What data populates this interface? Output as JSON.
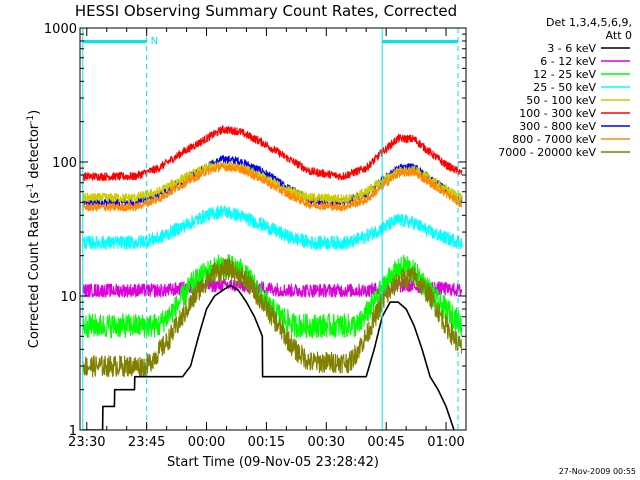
{
  "chart_data": {
    "type": "line",
    "title": "HESSI Observing Summary Count Rates, Corrected",
    "xlabel": "Start Time (09-Nov-05 23:28:42)",
    "ylabel_main": "Corrected Count Rate (s",
    "ylabel_sup1": "-1",
    "ylabel_mid": " detector",
    "ylabel_sup2": "-1",
    "ylabel_end": ")",
    "yscale": "log",
    "ylim": [
      1,
      1000
    ],
    "xlim_min": [
      -1.7,
      95
    ],
    "x_ticks": [
      {
        "min": 0,
        "label": "23:30"
      },
      {
        "min": 15,
        "label": "23:45"
      },
      {
        "min": 30,
        "label": "00:00"
      },
      {
        "min": 45,
        "label": "00:15"
      },
      {
        "min": 60,
        "label": "00:30"
      },
      {
        "min": 75,
        "label": "00:45"
      },
      {
        "min": 90,
        "label": "01:00"
      }
    ],
    "y_ticks": [
      {
        "v": 1,
        "label": "1"
      },
      {
        "v": 10,
        "label": "10"
      },
      {
        "v": 100,
        "label": "100"
      },
      {
        "v": 1000,
        "label": "1000"
      }
    ],
    "legend_header": [
      "Det 1,3,4,5,6,9,",
      "Att 0"
    ],
    "legend_position": "right",
    "series": [
      {
        "name": "3 - 6 keV",
        "color": "#000000",
        "points": [
          [
            -1,
            1
          ],
          [
            4,
            1
          ],
          [
            4,
            1.5
          ],
          [
            7,
            1.5
          ],
          [
            7,
            2
          ],
          [
            12,
            2
          ],
          [
            12,
            2.5
          ],
          [
            24,
            2.5
          ],
          [
            26,
            3
          ],
          [
            28,
            5
          ],
          [
            30,
            8
          ],
          [
            32,
            10
          ],
          [
            34,
            11
          ],
          [
            36,
            12
          ],
          [
            38,
            11
          ],
          [
            40,
            9
          ],
          [
            42,
            7
          ],
          [
            44,
            5
          ],
          [
            44,
            2.5
          ],
          [
            68,
            2.5
          ],
          [
            70,
            2.5
          ],
          [
            72,
            4
          ],
          [
            74,
            7
          ],
          [
            76,
            9
          ],
          [
            78,
            9
          ],
          [
            80,
            8
          ],
          [
            82,
            6
          ],
          [
            84,
            4
          ],
          [
            86,
            2.5
          ],
          [
            88,
            2
          ],
          [
            90,
            1.5
          ],
          [
            92,
            1
          ]
        ]
      },
      {
        "name": "6 - 12 keV",
        "color": "#dd00dd",
        "points": [
          [
            -1,
            11
          ],
          [
            20,
            11
          ],
          [
            30,
            12
          ],
          [
            38,
            12
          ],
          [
            50,
            11
          ],
          [
            70,
            11
          ],
          [
            80,
            12
          ],
          [
            94,
            11
          ]
        ]
      },
      {
        "name": "12 - 25 keV",
        "color": "#00ff00",
        "points": [
          [
            -1,
            6
          ],
          [
            18,
            6
          ],
          [
            22,
            8
          ],
          [
            26,
            12
          ],
          [
            30,
            15
          ],
          [
            34,
            17
          ],
          [
            38,
            16
          ],
          [
            42,
            12
          ],
          [
            46,
            8
          ],
          [
            52,
            6
          ],
          [
            62,
            6
          ],
          [
            68,
            6
          ],
          [
            72,
            9
          ],
          [
            76,
            14
          ],
          [
            80,
            17
          ],
          [
            84,
            13
          ],
          [
            88,
            9
          ],
          [
            92,
            7
          ],
          [
            94,
            6
          ]
        ]
      },
      {
        "name": "25 - 50 keV",
        "color": "#00ffff",
        "points": [
          [
            -1,
            25
          ],
          [
            12,
            25
          ],
          [
            18,
            27
          ],
          [
            24,
            33
          ],
          [
            30,
            40
          ],
          [
            34,
            43
          ],
          [
            38,
            40
          ],
          [
            44,
            34
          ],
          [
            50,
            28
          ],
          [
            56,
            25
          ],
          [
            66,
            25
          ],
          [
            70,
            28
          ],
          [
            74,
            32
          ],
          [
            78,
            37
          ],
          [
            82,
            35
          ],
          [
            86,
            30
          ],
          [
            90,
            27
          ],
          [
            94,
            25
          ]
        ]
      },
      {
        "name": "50 - 100 keV",
        "color": "#cccc00",
        "points": [
          [
            -1,
            54
          ],
          [
            12,
            54
          ],
          [
            18,
            60
          ],
          [
            24,
            75
          ],
          [
            30,
            90
          ],
          [
            34,
            95
          ],
          [
            38,
            92
          ],
          [
            44,
            78
          ],
          [
            50,
            62
          ],
          [
            56,
            54
          ],
          [
            66,
            53
          ],
          [
            70,
            60
          ],
          [
            74,
            72
          ],
          [
            78,
            85
          ],
          [
            82,
            86
          ],
          [
            86,
            75
          ],
          [
            90,
            62
          ],
          [
            94,
            54
          ]
        ]
      },
      {
        "name": "100 - 300 keV",
        "color": "#ff0000",
        "points": [
          [
            -1,
            78
          ],
          [
            12,
            78
          ],
          [
            18,
            90
          ],
          [
            24,
            118
          ],
          [
            30,
            150
          ],
          [
            34,
            175
          ],
          [
            38,
            170
          ],
          [
            44,
            140
          ],
          [
            50,
            108
          ],
          [
            56,
            85
          ],
          [
            64,
            78
          ],
          [
            70,
            90
          ],
          [
            74,
            118
          ],
          [
            78,
            150
          ],
          [
            82,
            148
          ],
          [
            86,
            118
          ],
          [
            90,
            95
          ],
          [
            94,
            82
          ]
        ]
      },
      {
        "name": "300 - 800 keV",
        "color": "#0000ff",
        "points": [
          [
            -1,
            50
          ],
          [
            12,
            50
          ],
          [
            18,
            57
          ],
          [
            24,
            72
          ],
          [
            30,
            92
          ],
          [
            34,
            105
          ],
          [
            38,
            102
          ],
          [
            44,
            85
          ],
          [
            50,
            65
          ],
          [
            56,
            52
          ],
          [
            64,
            50
          ],
          [
            70,
            58
          ],
          [
            74,
            73
          ],
          [
            78,
            90
          ],
          [
            82,
            92
          ],
          [
            86,
            75
          ],
          [
            90,
            62
          ],
          [
            94,
            52
          ]
        ]
      },
      {
        "name": "800 - 7000 keV",
        "color": "#ff8800",
        "points": [
          [
            -1,
            46
          ],
          [
            12,
            46
          ],
          [
            18,
            53
          ],
          [
            24,
            68
          ],
          [
            30,
            85
          ],
          [
            34,
            92
          ],
          [
            38,
            90
          ],
          [
            44,
            74
          ],
          [
            50,
            58
          ],
          [
            56,
            48
          ],
          [
            64,
            46
          ],
          [
            70,
            52
          ],
          [
            74,
            66
          ],
          [
            78,
            82
          ],
          [
            82,
            84
          ],
          [
            86,
            70
          ],
          [
            90,
            58
          ],
          [
            94,
            48
          ]
        ]
      },
      {
        "name": "7000 - 20000 keV",
        "color": "#808000",
        "points": [
          [
            -1,
            3
          ],
          [
            15,
            3
          ],
          [
            20,
            4.5
          ],
          [
            24,
            7
          ],
          [
            28,
            11
          ],
          [
            32,
            15
          ],
          [
            36,
            16
          ],
          [
            40,
            13
          ],
          [
            44,
            9
          ],
          [
            48,
            6
          ],
          [
            52,
            4
          ],
          [
            56,
            3.2
          ],
          [
            62,
            3.2
          ],
          [
            66,
            3.2
          ],
          [
            70,
            5
          ],
          [
            74,
            9
          ],
          [
            78,
            13
          ],
          [
            82,
            14
          ],
          [
            86,
            10
          ],
          [
            90,
            6
          ],
          [
            94,
            4
          ]
        ]
      }
    ],
    "night_bars": [
      {
        "x0": -1,
        "x1": 15,
        "label": "N"
      },
      {
        "x0": 74,
        "x1": 93,
        "label": ""
      }
    ],
    "cyan_vlines_solid": [
      -1,
      74
    ],
    "cyan_vlines_dashed": [
      15,
      93
    ]
  },
  "footer": {
    "timestamp": "27-Nov-2009 00:55"
  }
}
